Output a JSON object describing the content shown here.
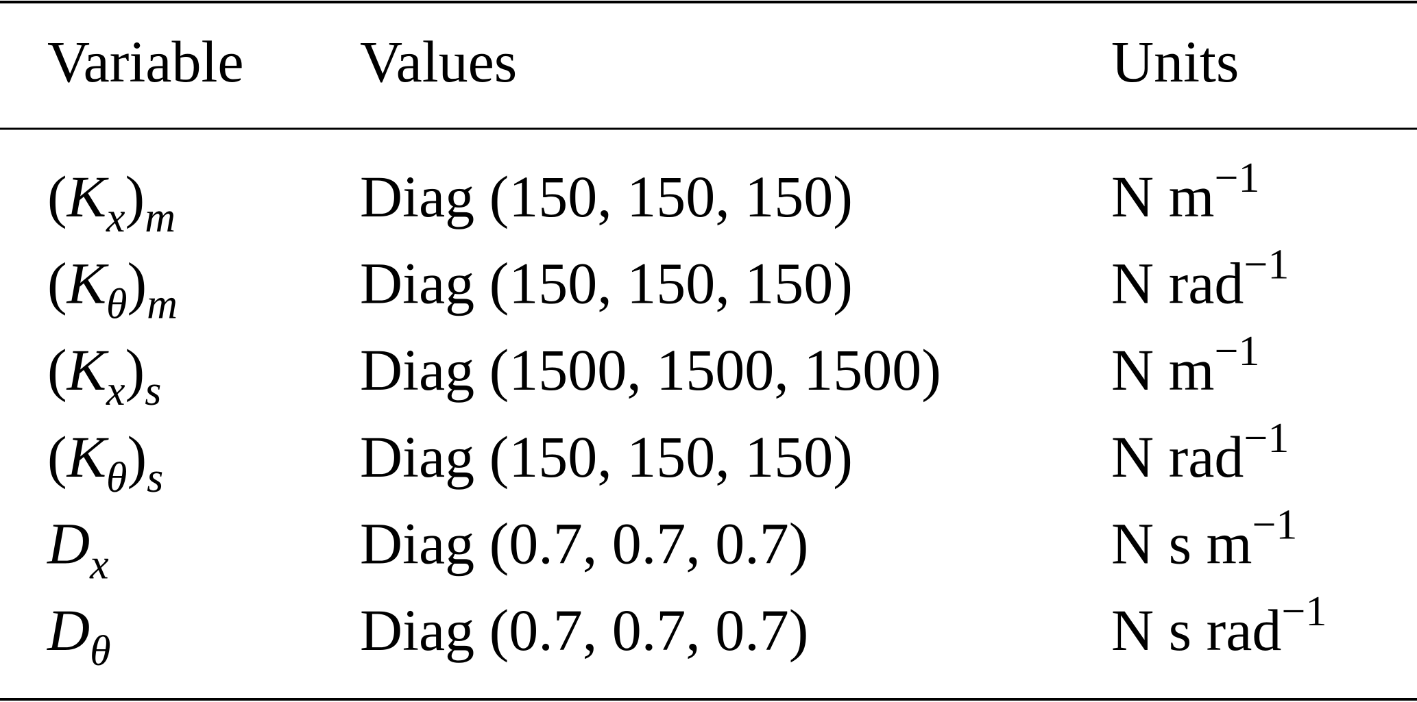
{
  "table": {
    "header": [
      "Variable",
      "Values",
      "Units"
    ],
    "rows": [
      [
        [
          {
            "text": "("
          },
          {
            "text": "K",
            "italic": true
          },
          {
            "text": "x",
            "italic": true,
            "script": "sub"
          },
          {
            "text": ")"
          },
          {
            "text": "m",
            "italic": true,
            "script": "sub"
          }
        ],
        "Diag (150, 150, 150)",
        [
          {
            "text": "N m"
          },
          {
            "text": "−1",
            "script": "sup"
          }
        ]
      ],
      [
        [
          {
            "text": "("
          },
          {
            "text": "K",
            "italic": true
          },
          {
            "text": "θ",
            "italic": true,
            "script": "sub"
          },
          {
            "text": ")"
          },
          {
            "text": "m",
            "italic": true,
            "script": "sub"
          }
        ],
        "Diag (150, 150, 150)",
        [
          {
            "text": "N rad"
          },
          {
            "text": "−1",
            "script": "sup"
          }
        ]
      ],
      [
        [
          {
            "text": "("
          },
          {
            "text": "K",
            "italic": true
          },
          {
            "text": "x",
            "italic": true,
            "script": "sub"
          },
          {
            "text": ")"
          },
          {
            "text": "s",
            "italic": true,
            "script": "sub"
          }
        ],
        "Diag (1500, 1500, 1500)",
        [
          {
            "text": "N m"
          },
          {
            "text": "−1",
            "script": "sup"
          }
        ]
      ],
      [
        [
          {
            "text": "("
          },
          {
            "text": "K",
            "italic": true
          },
          {
            "text": "θ",
            "italic": true,
            "script": "sub"
          },
          {
            "text": ")"
          },
          {
            "text": "s",
            "italic": true,
            "script": "sub"
          }
        ],
        "Diag (150, 150, 150)",
        [
          {
            "text": "N rad"
          },
          {
            "text": "−1",
            "script": "sup"
          }
        ]
      ],
      [
        [
          {
            "text": "D",
            "italic": true
          },
          {
            "text": "x",
            "italic": true,
            "script": "sub"
          }
        ],
        "Diag (0.7, 0.7, 0.7)",
        [
          {
            "text": "N s m"
          },
          {
            "text": "−1",
            "script": "sup"
          }
        ]
      ],
      [
        [
          {
            "text": "D",
            "italic": true
          },
          {
            "text": "θ",
            "italic": true,
            "script": "sub"
          }
        ],
        "Diag (0.7, 0.7, 0.7)",
        [
          {
            "text": "N s rad"
          },
          {
            "text": "−1",
            "script": "sup"
          }
        ]
      ]
    ]
  }
}
